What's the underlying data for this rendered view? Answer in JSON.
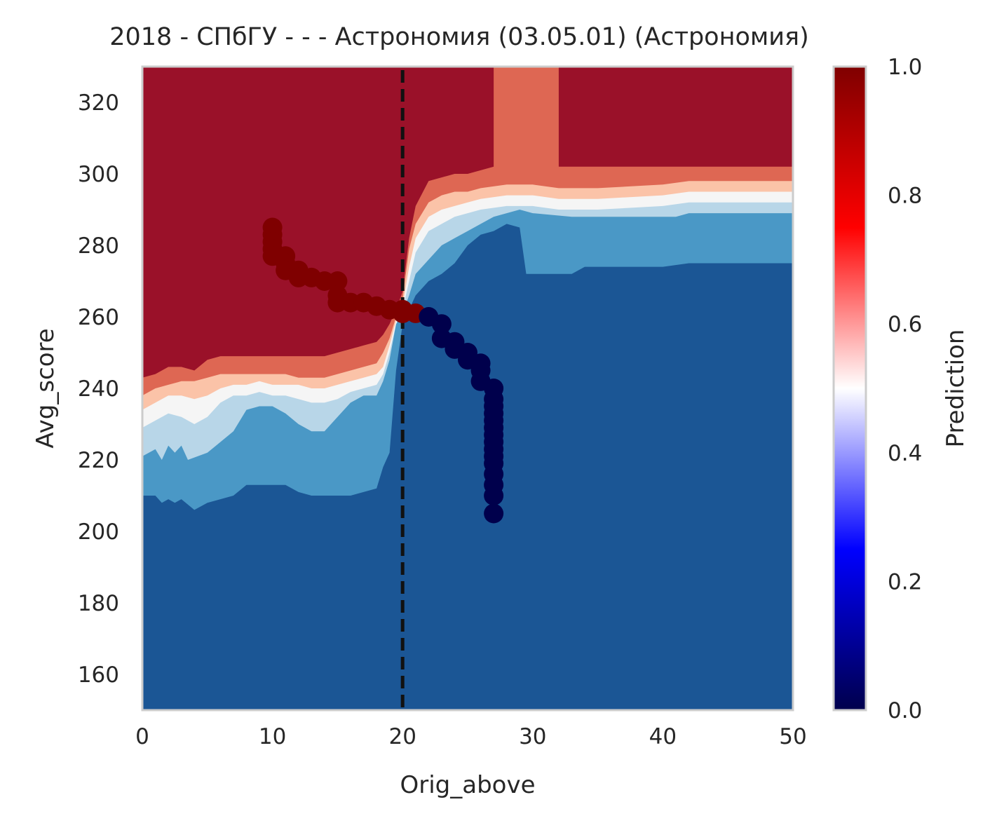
{
  "chart_data": {
    "type": "heatmap",
    "title": "2018 - СПбГУ - - - Астрономия (03.05.01) (Астрономия)",
    "xlabel": "Orig_above",
    "ylabel": "Avg_score",
    "xlim": [
      0,
      50
    ],
    "ylim": [
      150,
      330
    ],
    "x_ticks": [
      "0",
      "10",
      "20",
      "30",
      "40",
      "50"
    ],
    "y_ticks": [
      "160",
      "180",
      "200",
      "220",
      "240",
      "260",
      "280",
      "300",
      "320"
    ],
    "grid": false,
    "colorbar": {
      "label": "Prediction",
      "colormap": "seismic",
      "range": [
        0,
        1
      ],
      "ticks": [
        "0.0",
        "0.2",
        "0.4",
        "0.6",
        "0.8",
        "1.0"
      ]
    },
    "contour_levels": [
      {
        "range": [
          0.0,
          0.125
        ],
        "color": "#1b5695"
      },
      {
        "range": [
          0.125,
          0.25
        ],
        "color": "#4a98c6"
      },
      {
        "range": [
          0.25,
          0.375
        ],
        "color": "#b8d6e8"
      },
      {
        "range": [
          0.375,
          0.5
        ],
        "color": "#f5f5f5"
      },
      {
        "range": [
          0.5,
          0.625
        ],
        "color": "#fbc3a8"
      },
      {
        "range": [
          0.625,
          0.75
        ],
        "color": "#de6753"
      },
      {
        "range": [
          0.75,
          1.0
        ],
        "color": "#9a1129"
      }
    ],
    "boundaries": [
      {
        "level": 0.125,
        "points": [
          [
            0,
            210
          ],
          [
            1,
            210
          ],
          [
            1.5,
            208
          ],
          [
            2,
            209
          ],
          [
            2.5,
            208
          ],
          [
            3,
            209
          ],
          [
            4,
            206
          ],
          [
            5,
            208
          ],
          [
            6,
            209
          ],
          [
            7,
            210
          ],
          [
            8,
            213
          ],
          [
            9,
            213
          ],
          [
            10,
            213
          ],
          [
            11,
            213
          ],
          [
            12,
            211
          ],
          [
            13,
            210
          ],
          [
            14,
            210
          ],
          [
            15,
            210
          ],
          [
            16,
            210
          ],
          [
            17,
            211
          ],
          [
            18,
            212
          ],
          [
            18.5,
            218
          ],
          [
            19,
            222
          ],
          [
            19.5,
            245
          ],
          [
            20,
            258
          ],
          [
            20.5,
            262
          ],
          [
            21,
            266
          ],
          [
            22,
            270
          ],
          [
            23,
            272
          ],
          [
            24,
            275
          ],
          [
            25,
            280
          ],
          [
            26,
            283
          ],
          [
            27,
            284
          ],
          [
            28,
            286
          ],
          [
            29,
            285
          ],
          [
            29.5,
            272
          ],
          [
            30,
            272
          ],
          [
            33,
            272
          ],
          [
            34,
            274
          ],
          [
            40,
            274
          ],
          [
            42,
            275
          ],
          [
            50,
            275
          ]
        ]
      },
      {
        "level": 0.25,
        "points": [
          [
            0,
            221
          ],
          [
            1,
            223
          ],
          [
            1.5,
            220
          ],
          [
            2,
            224
          ],
          [
            2.5,
            222
          ],
          [
            3,
            224
          ],
          [
            3.5,
            220
          ],
          [
            5,
            222
          ],
          [
            6,
            225
          ],
          [
            7,
            228
          ],
          [
            8,
            234
          ],
          [
            9,
            235
          ],
          [
            10,
            235
          ],
          [
            11,
            233
          ],
          [
            12,
            230
          ],
          [
            13,
            228
          ],
          [
            14,
            228
          ],
          [
            15,
            232
          ],
          [
            16,
            236
          ],
          [
            17,
            238
          ],
          [
            18,
            238
          ],
          [
            18.5,
            242
          ],
          [
            19,
            248
          ],
          [
            19.5,
            258
          ],
          [
            20,
            261
          ],
          [
            20.5,
            266
          ],
          [
            21,
            272
          ],
          [
            22,
            276
          ],
          [
            23,
            280
          ],
          [
            24,
            282
          ],
          [
            25,
            284
          ],
          [
            26,
            286
          ],
          [
            27,
            288
          ],
          [
            28,
            289
          ],
          [
            29,
            290
          ],
          [
            30,
            289
          ],
          [
            33,
            288
          ],
          [
            38,
            288
          ],
          [
            41,
            288
          ],
          [
            42,
            289
          ],
          [
            50,
            289
          ]
        ]
      },
      {
        "level": 0.375,
        "points": [
          [
            0,
            229
          ],
          [
            1,
            231
          ],
          [
            2,
            233
          ],
          [
            3,
            232
          ],
          [
            4,
            230
          ],
          [
            5,
            232
          ],
          [
            6,
            236
          ],
          [
            7,
            238
          ],
          [
            8,
            238
          ],
          [
            9,
            239
          ],
          [
            10,
            238
          ],
          [
            11,
            238
          ],
          [
            12,
            237
          ],
          [
            13,
            236
          ],
          [
            14,
            236
          ],
          [
            15,
            237
          ],
          [
            16,
            239
          ],
          [
            17,
            240
          ],
          [
            18,
            241
          ],
          [
            18.5,
            244
          ],
          [
            19,
            250
          ],
          [
            19.5,
            258
          ],
          [
            20,
            262
          ],
          [
            20.5,
            270
          ],
          [
            21,
            278
          ],
          [
            22,
            284
          ],
          [
            23,
            286
          ],
          [
            24,
            288
          ],
          [
            25,
            289
          ],
          [
            26,
            290
          ],
          [
            28,
            291
          ],
          [
            30,
            291
          ],
          [
            32,
            290
          ],
          [
            35,
            290
          ],
          [
            40,
            291
          ],
          [
            42,
            292
          ],
          [
            50,
            292
          ]
        ]
      },
      {
        "level": 0.5,
        "points": [
          [
            0,
            234
          ],
          [
            1,
            236
          ],
          [
            2,
            238
          ],
          [
            3,
            238
          ],
          [
            4,
            237
          ],
          [
            5,
            238
          ],
          [
            6,
            240
          ],
          [
            7,
            241
          ],
          [
            8,
            241
          ],
          [
            9,
            242
          ],
          [
            10,
            241
          ],
          [
            11,
            241
          ],
          [
            12,
            241
          ],
          [
            13,
            240
          ],
          [
            14,
            240
          ],
          [
            15,
            241
          ],
          [
            16,
            242
          ],
          [
            17,
            243
          ],
          [
            18,
            244
          ],
          [
            18.5,
            246
          ],
          [
            19,
            252
          ],
          [
            19.5,
            259
          ],
          [
            20,
            263
          ],
          [
            20.5,
            274
          ],
          [
            21,
            282
          ],
          [
            22,
            288
          ],
          [
            23,
            290
          ],
          [
            24,
            291
          ],
          [
            25,
            292
          ],
          [
            26,
            293
          ],
          [
            28,
            294
          ],
          [
            30,
            294
          ],
          [
            32,
            293
          ],
          [
            35,
            293
          ],
          [
            40,
            294
          ],
          [
            42,
            295
          ],
          [
            50,
            295
          ]
        ]
      },
      {
        "level": 0.625,
        "points": [
          [
            0,
            238
          ],
          [
            1,
            240
          ],
          [
            2,
            241
          ],
          [
            3,
            242
          ],
          [
            4,
            242
          ],
          [
            5,
            243
          ],
          [
            6,
            244
          ],
          [
            7,
            244
          ],
          [
            8,
            244
          ],
          [
            9,
            244
          ],
          [
            10,
            244
          ],
          [
            11,
            244
          ],
          [
            12,
            243
          ],
          [
            13,
            243
          ],
          [
            14,
            243
          ],
          [
            15,
            244
          ],
          [
            16,
            245
          ],
          [
            17,
            246
          ],
          [
            18,
            247
          ],
          [
            18.5,
            250
          ],
          [
            19,
            254
          ],
          [
            19.5,
            260
          ],
          [
            20,
            265
          ],
          [
            20.5,
            279
          ],
          [
            21,
            286
          ],
          [
            22,
            292
          ],
          [
            23,
            294
          ],
          [
            24,
            295
          ],
          [
            25,
            295
          ],
          [
            26,
            296
          ],
          [
            28,
            297
          ],
          [
            30,
            297
          ],
          [
            32,
            296
          ],
          [
            35,
            296
          ],
          [
            40,
            297
          ],
          [
            42,
            298
          ],
          [
            50,
            298
          ]
        ]
      },
      {
        "level": 0.75,
        "points": [
          [
            0,
            243
          ],
          [
            1,
            244
          ],
          [
            2,
            246
          ],
          [
            3,
            246
          ],
          [
            4,
            245
          ],
          [
            5,
            248
          ],
          [
            6,
            249
          ],
          [
            7,
            249
          ],
          [
            8,
            249
          ],
          [
            9,
            249
          ],
          [
            10,
            249
          ],
          [
            11,
            249
          ],
          [
            12,
            249
          ],
          [
            13,
            249
          ],
          [
            14,
            249
          ],
          [
            15,
            250
          ],
          [
            16,
            251
          ],
          [
            17,
            252
          ],
          [
            18,
            253
          ],
          [
            18.5,
            255
          ],
          [
            19,
            258
          ],
          [
            19.5,
            262
          ],
          [
            20,
            267
          ],
          [
            20.5,
            282
          ],
          [
            21,
            291
          ],
          [
            22,
            298
          ],
          [
            23,
            299
          ],
          [
            24,
            300
          ],
          [
            25,
            300
          ],
          [
            26,
            301
          ],
          [
            27,
            302
          ],
          [
            27,
            330
          ],
          [
            32,
            330
          ],
          [
            32,
            302
          ],
          [
            35,
            302
          ],
          [
            40,
            302
          ],
          [
            50,
            302
          ]
        ]
      }
    ],
    "series": [
      {
        "color_value": 1.0,
        "x": [
          10,
          10,
          10,
          10,
          10,
          11,
          11,
          11,
          12,
          12,
          13,
          14,
          15,
          15,
          15,
          16,
          17,
          18,
          19,
          20,
          20,
          21
        ],
        "y": [
          285,
          283,
          281,
          279,
          277,
          277,
          275,
          273,
          273,
          271,
          271,
          270,
          270,
          266,
          264,
          264,
          264,
          263,
          262,
          262,
          261,
          261
        ]
      },
      {
        "color_value": 0.0,
        "x": [
          22,
          23,
          23,
          24,
          24,
          25,
          25,
          26,
          26,
          26,
          27,
          27,
          27,
          27,
          27,
          27,
          27,
          27,
          27,
          27,
          27,
          27,
          27,
          27,
          27
        ],
        "y": [
          260,
          258,
          254,
          253,
          251,
          250,
          248,
          247,
          245,
          242,
          240,
          237,
          235,
          233,
          231,
          229,
          227,
          225,
          223,
          221,
          219,
          216,
          213,
          210,
          205
        ]
      }
    ],
    "threshold_line": {
      "x": 20,
      "style": "dashed",
      "color": "#111111"
    }
  }
}
